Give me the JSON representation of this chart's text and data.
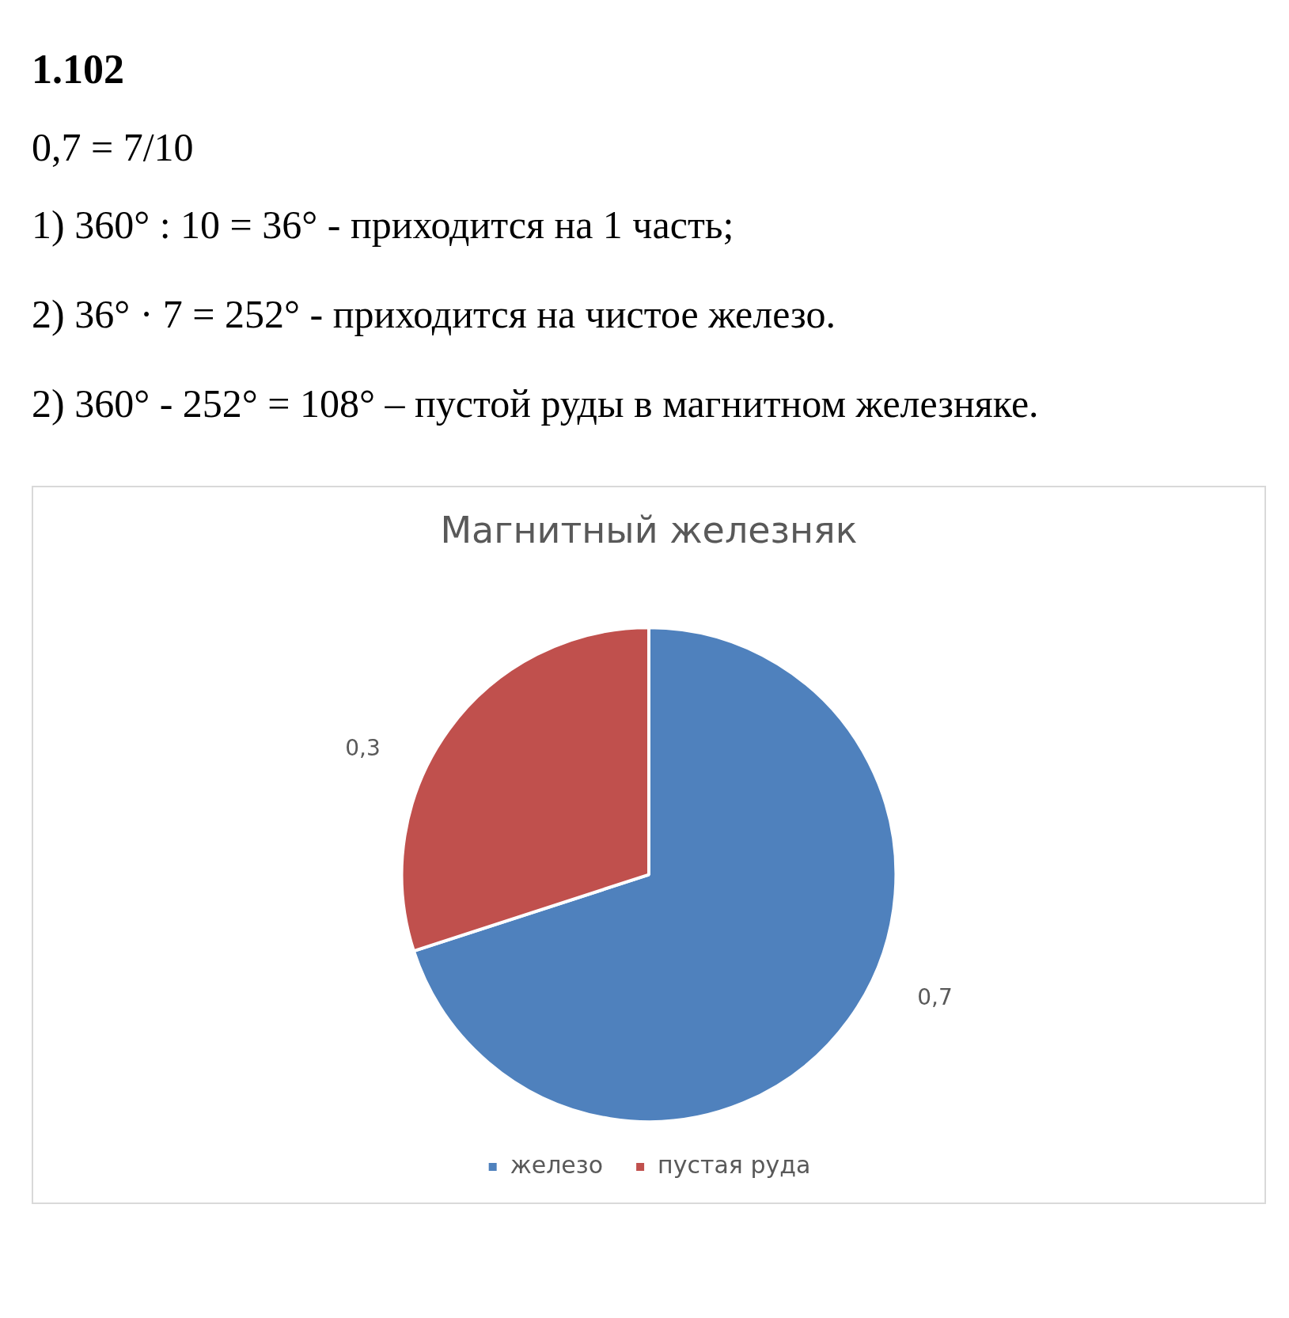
{
  "chart_data": {
    "type": "pie",
    "title": "Магнитный железняк",
    "annotations": [
      "1.102",
      "0,7 = 7/10",
      "1) 360° : 10 = 36° - приходится на 1 часть;",
      "2) 36° · 7 = 252° - приходится на чистое железо.",
      "2) 360° - 252° = 108° – пустой руды в магнитном железняке."
    ],
    "categories": [
      "железо",
      "пустая руда"
    ],
    "values": [
      0.7,
      0.3
    ],
    "colors": [
      "#4f81bd",
      "#c0504d"
    ],
    "value_labels": [
      "0,7",
      "0,3"
    ],
    "legend": "bottom"
  }
}
